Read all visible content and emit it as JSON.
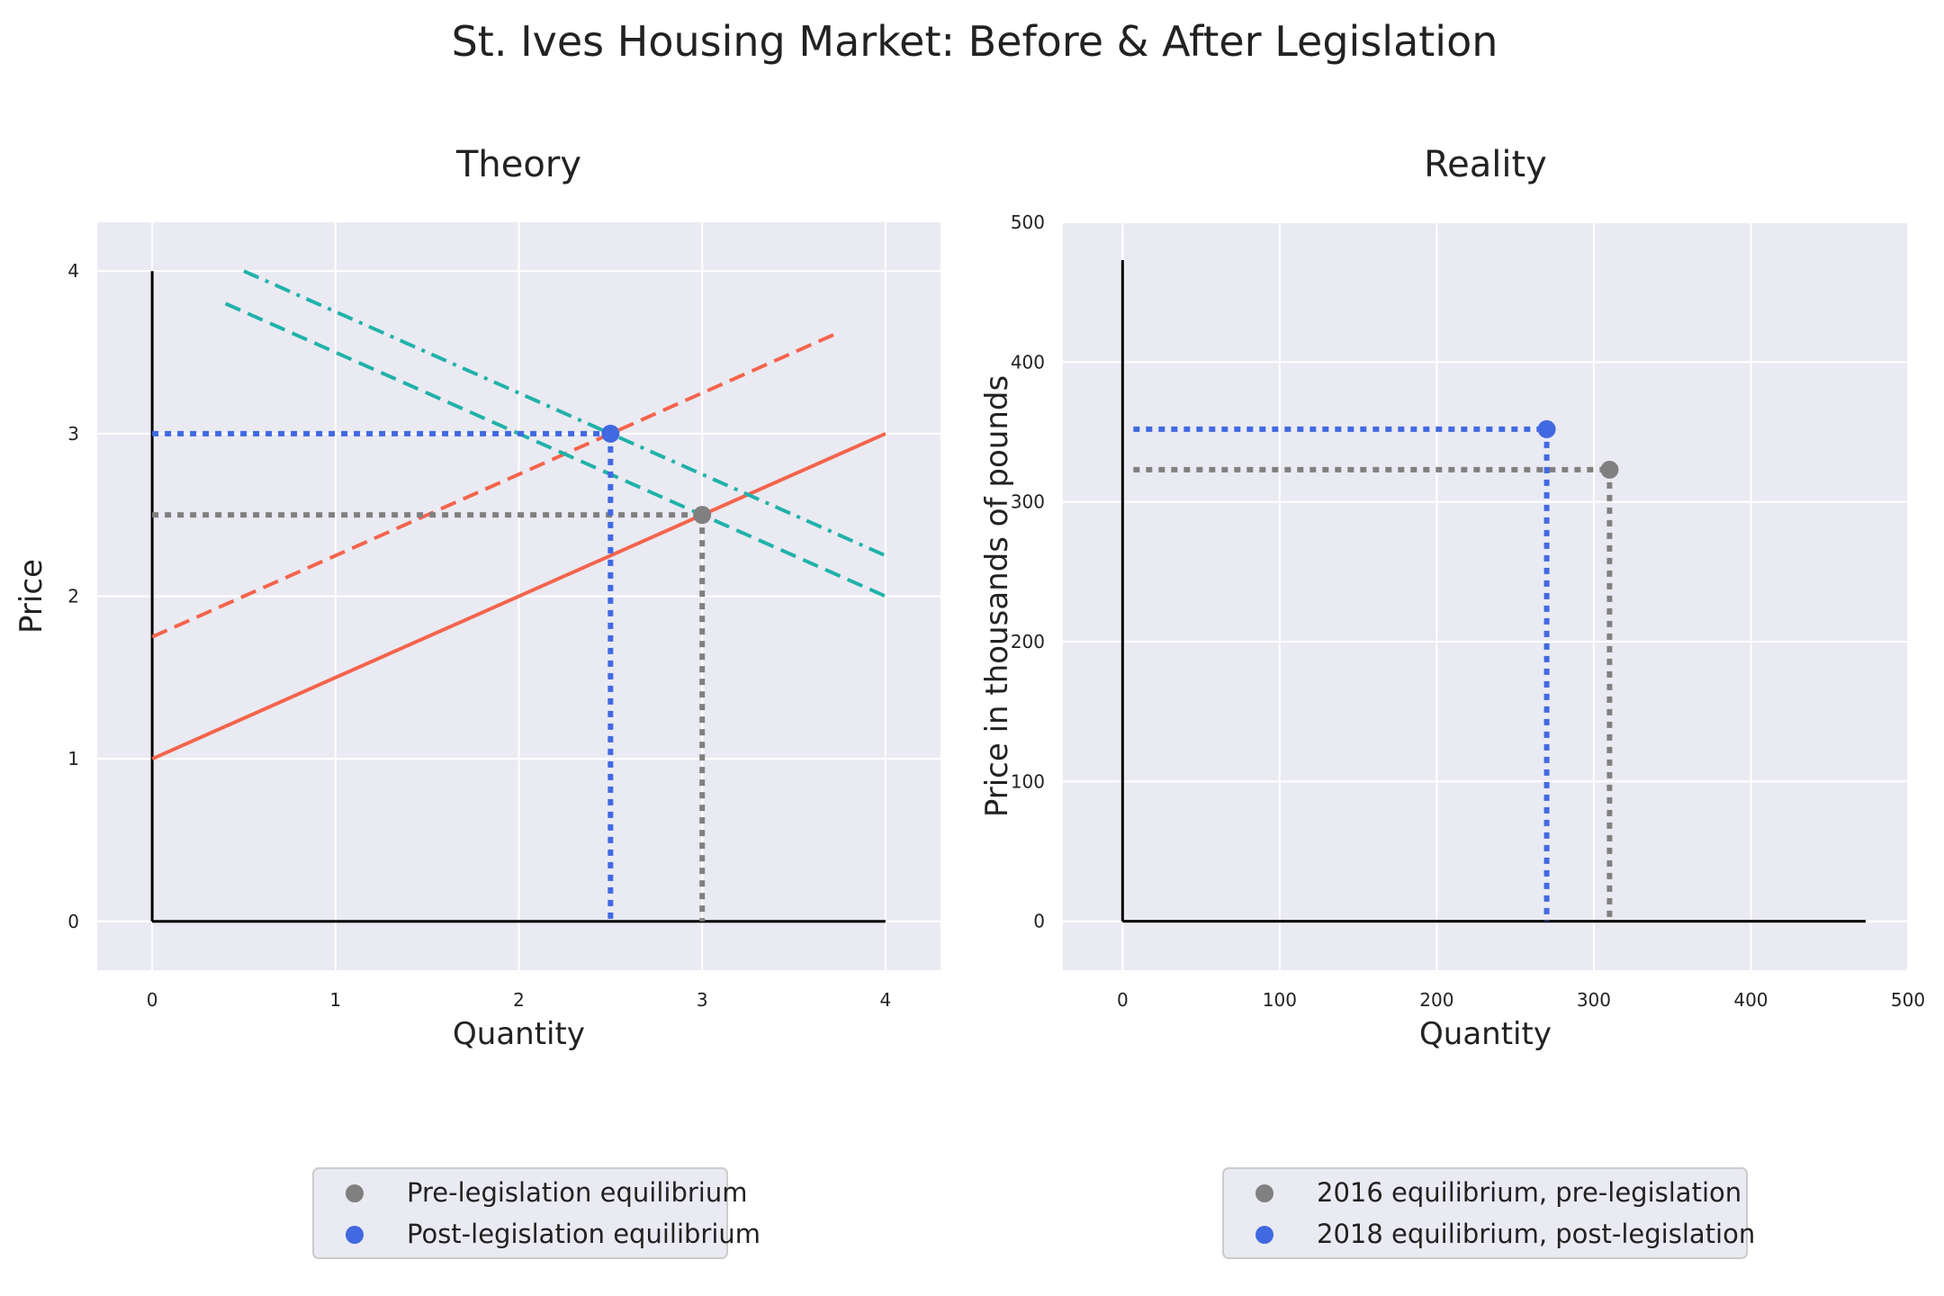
{
  "suptitle": "St. Ives Housing Market: Before & After Legislation",
  "colors": {
    "supply": "#f4644c",
    "demand": "#20b2aa",
    "pre_point": "#808080",
    "post_point": "#4169e1",
    "plot_bg": "#eaeaf2",
    "grid": "#ffffff",
    "axis": "#000000",
    "text": "#222222"
  },
  "chart_data": [
    {
      "type": "line",
      "title": "Theory",
      "xlabel": "Quantity",
      "ylabel": "Price",
      "xlim": [
        -0.3,
        4.3
      ],
      "ylim": [
        -0.3,
        4.3
      ],
      "xticks": [
        "0",
        "1",
        "2",
        "3",
        "4"
      ],
      "yticks": [
        "0",
        "1",
        "2",
        "3",
        "4"
      ],
      "grid": true,
      "legend_position": "bottom-center",
      "series": [
        {
          "style": "solid",
          "color": "#f4644c",
          "x": [
            0,
            4
          ],
          "y": [
            1.0,
            3.0
          ]
        },
        {
          "style": "dashed",
          "color": "#f4644c",
          "x": [
            0,
            3.75
          ],
          "y": [
            1.75,
            3.625
          ]
        },
        {
          "style": "dashed",
          "color": "#20b2aa",
          "x": [
            0.4,
            4
          ],
          "y": [
            3.8,
            2.0
          ]
        },
        {
          "style": "dashdot",
          "color": "#20b2aa",
          "x": [
            0.5,
            4
          ],
          "y": [
            4.0,
            2.25
          ]
        }
      ],
      "points": [
        {
          "label": "Pre-legislation equilibrium",
          "x": 3.0,
          "y": 2.5,
          "color": "#808080"
        },
        {
          "label": "Post-legislation equilibrium",
          "x": 2.5,
          "y": 3.0,
          "color": "#4169e1"
        }
      ],
      "axes_lines": {
        "x_end": 4,
        "y_end": 4
      }
    },
    {
      "type": "scatter",
      "title": "Reality",
      "xlabel": "Quantity",
      "ylabel": "Price in thousands of pounds",
      "xlim": [
        -38,
        500
      ],
      "ylim": [
        -35,
        500
      ],
      "xticks": [
        "0",
        "100",
        "200",
        "300",
        "400",
        "500"
      ],
      "yticks": [
        "0",
        "100",
        "200",
        "300",
        "400",
        "500"
      ],
      "grid": true,
      "legend_position": "bottom-center",
      "series": [],
      "points": [
        {
          "label": "2016 equilibrium, pre-legislation",
          "x": 310,
          "y": 323,
          "color": "#808080"
        },
        {
          "label": "2018 equilibrium, post-legislation",
          "x": 270,
          "y": 352,
          "color": "#4169e1"
        }
      ],
      "axes_lines": {
        "x_end": 473,
        "y_end": 473
      }
    }
  ]
}
